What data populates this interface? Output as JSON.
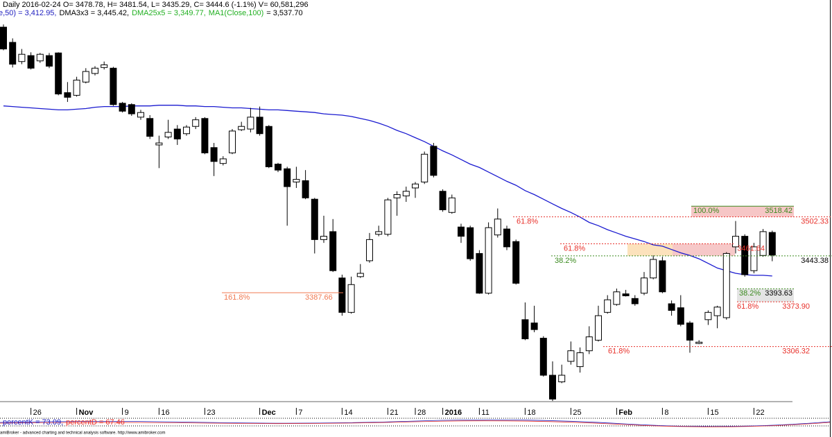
{
  "chart_data": {
    "type": "candlestick",
    "title": "Daily 2016-02-24 O= 3478.78, H= 3481.54, L= 3435.29, C= 3444.6 (-1.1%) V= 60,581,296",
    "legend_items": [
      {
        "text": "e,50) = 3,412.95,",
        "color": "#2020c0"
      },
      {
        "text": "DMA3x3 = 3,445.42,",
        "color": "#000000"
      },
      {
        "text": "DMA25x5 = 3,349.77,",
        "color": "#22b022"
      },
      {
        "text": "MA1(Close,100)",
        "color": "#22b022"
      },
      {
        "text": "= 3,537.70",
        "color": "#000000"
      }
    ],
    "categories": [
      null,
      null,
      null,
      "26",
      null,
      null,
      null,
      null,
      "Nov",
      null,
      null,
      null,
      null,
      "9",
      null,
      null,
      null,
      "16",
      null,
      null,
      null,
      null,
      "23",
      null,
      null,
      null,
      null,
      null,
      "Dec",
      null,
      null,
      null,
      "7",
      null,
      null,
      null,
      null,
      "14",
      null,
      null,
      null,
      null,
      "21",
      null,
      null,
      "28",
      null,
      null,
      "2016",
      null,
      null,
      null,
      "11",
      null,
      null,
      null,
      null,
      "18",
      null,
      null,
      null,
      null,
      "25",
      null,
      null,
      null,
      null,
      "Feb",
      null,
      null,
      null,
      null,
      "8",
      null,
      null,
      null,
      null,
      "15",
      null,
      null,
      null,
      null,
      "22",
      null,
      null
    ],
    "open": [
      3789,
      3766,
      3737,
      3746,
      3738,
      3746,
      3750,
      3690,
      3686,
      3706,
      3719,
      3728,
      3727,
      3674,
      3672,
      3653,
      3651,
      3611,
      3623,
      3635,
      3628,
      3639,
      3651,
      3607,
      3583,
      3599,
      3634,
      3635,
      3653,
      3639,
      3582,
      3575,
      3555,
      3557,
      3529,
      3468,
      3480,
      3410,
      3358,
      3412,
      3436,
      3476,
      3476,
      3531,
      3534,
      3546,
      3555,
      3609,
      3541,
      3509,
      3487,
      3486,
      3447,
      3387,
      3475,
      3484,
      3465,
      3347,
      3342,
      3319,
      3263,
      3253,
      3284,
      3276,
      3300,
      3316,
      3358,
      3370,
      3386,
      3379,
      3387,
      3410,
      3436,
      3371,
      3365,
      3342,
      3311,
      3347,
      3353,
      3350,
      3457,
      3473,
      3421,
      3444,
      3478.78
    ],
    "high": [
      3793,
      3772,
      3756,
      3751,
      3750,
      3750,
      3751,
      3706,
      3714,
      3727,
      3730,
      3737,
      3729,
      3676,
      3674,
      3664,
      3656,
      3625,
      3649,
      3641,
      3641,
      3653,
      3653,
      3614,
      3594,
      3635,
      3646,
      3667,
      3669,
      3641,
      3584,
      3578,
      3578,
      3573,
      3531,
      3504,
      3499,
      3415,
      3412,
      3431,
      3478,
      3489,
      3531,
      3541,
      3548,
      3555,
      3601,
      3614,
      3544,
      3536,
      3492,
      3489,
      3452,
      3494,
      3515,
      3489,
      3468,
      3373,
      3368,
      3322,
      3284,
      3279,
      3314,
      3305,
      3337,
      3368,
      3384,
      3394,
      3392,
      3384,
      3419,
      3444,
      3442,
      3376,
      3384,
      3345,
      3316,
      3361,
      3368,
      3449,
      3496,
      3476,
      3463,
      3484,
      3481.54
    ],
    "low": [
      3754,
      3728,
      3733,
      3725,
      3735,
      3727,
      3686,
      3676,
      3684,
      3704,
      3716,
      3725,
      3670,
      3660,
      3655,
      3649,
      3620,
      3576,
      3620,
      3611,
      3625,
      3635,
      3597,
      3564,
      3580,
      3597,
      3632,
      3630,
      3625,
      3576,
      3570,
      3489,
      3546,
      3529,
      3447,
      3463,
      3419,
      3353,
      3356,
      3410,
      3433,
      3473,
      3473,
      3504,
      3525,
      3531,
      3552,
      3562,
      3510,
      3507,
      3463,
      3436,
      3386,
      3385,
      3471,
      3452,
      3400,
      3316,
      3328,
      3261,
      3224,
      3251,
      3279,
      3267,
      3295,
      3314,
      3356,
      3368,
      3382,
      3368,
      3384,
      3408,
      3387,
      3353,
      3337,
      3297,
      3310,
      3339,
      3334,
      3347,
      3447,
      3412,
      3417,
      3442,
      3435.29
    ],
    "close": [
      3756,
      3733,
      3748,
      3727,
      3748,
      3730,
      3688,
      3683,
      3709,
      3722,
      3727,
      3732,
      3672,
      3662,
      3658,
      3660,
      3624,
      3614,
      3630,
      3620,
      3638,
      3649,
      3599,
      3586,
      3590,
      3632,
      3639,
      3653,
      3628,
      3578,
      3573,
      3548,
      3559,
      3531,
      3468,
      3473,
      3421,
      3358,
      3400,
      3417,
      3468,
      3480,
      3528,
      3536,
      3541,
      3552,
      3597,
      3565,
      3513,
      3531,
      3473,
      3439,
      3387,
      3486,
      3499,
      3457,
      3402,
      3318,
      3332,
      3263,
      3227,
      3263,
      3300,
      3297,
      3321,
      3353,
      3377,
      3389,
      3383,
      3371,
      3410,
      3438,
      3389,
      3361,
      3340,
      3316,
      3313,
      3358,
      3366,
      3447,
      3473,
      3415,
      3457,
      3480,
      3444.6
    ],
    "up_color": "#ffffff",
    "down_color": "#000000",
    "ma": {
      "color": "#1a1ad0",
      "values": [
        3670,
        3669,
        3668,
        3667,
        3666,
        3665,
        3664,
        3664,
        3665,
        3666,
        3668,
        3669,
        3669,
        3669,
        3670,
        3670,
        3670,
        3671,
        3671,
        3671,
        3670,
        3670,
        3669,
        3669,
        3668,
        3667,
        3667,
        3666,
        3665,
        3664,
        3664,
        3663,
        3662,
        3661,
        3660,
        3658,
        3657,
        3656,
        3654,
        3651,
        3648,
        3644,
        3639,
        3633,
        3628,
        3622,
        3616,
        3609,
        3602,
        3596,
        3589,
        3582,
        3577,
        3570,
        3563,
        3556,
        3550,
        3542,
        3536,
        3529,
        3522,
        3515,
        3509,
        3502,
        3494,
        3489,
        3483,
        3478,
        3473,
        3469,
        3465,
        3460,
        3458,
        3453,
        3448,
        3444,
        3439,
        3432,
        3425,
        3421,
        3417,
        3415,
        3414,
        3414,
        3412.95
      ]
    },
    "ylim": [
      3220,
      3830
    ],
    "levels": [
      {
        "label": "161.8%",
        "value": 3387.66,
        "color": "#f07850"
      },
      {
        "label": "61.8%",
        "value": 3502.33,
        "color": "#e8302a"
      },
      {
        "label": "61.8%",
        "value": 3461.64,
        "color": "#e8302a"
      },
      {
        "label": "38.2%",
        "value": 3443.38,
        "color": "#3a8a1e"
      },
      {
        "label": "100.0%",
        "value": 3518.42,
        "color": "#3a8a1e"
      },
      {
        "label": "38.2%",
        "value": 3393.63,
        "color": "#3a8a1e"
      },
      {
        "label": "61.8%",
        "value": 3373.9,
        "value_label": "3373.90",
        "color": "#e8302a"
      },
      {
        "label": "61.8%",
        "value": 3306.32,
        "color": "#e8302a"
      }
    ],
    "oscillator": {
      "items": [
        {
          "text": "percentK = 73.09,",
          "color": "#2020c0"
        },
        {
          "text": "percentD = 67.46",
          "color": "#e8302a"
        }
      ]
    },
    "footer": "amiBroker - advanced charting and technical analysis software. http://www.amibroker.com"
  }
}
